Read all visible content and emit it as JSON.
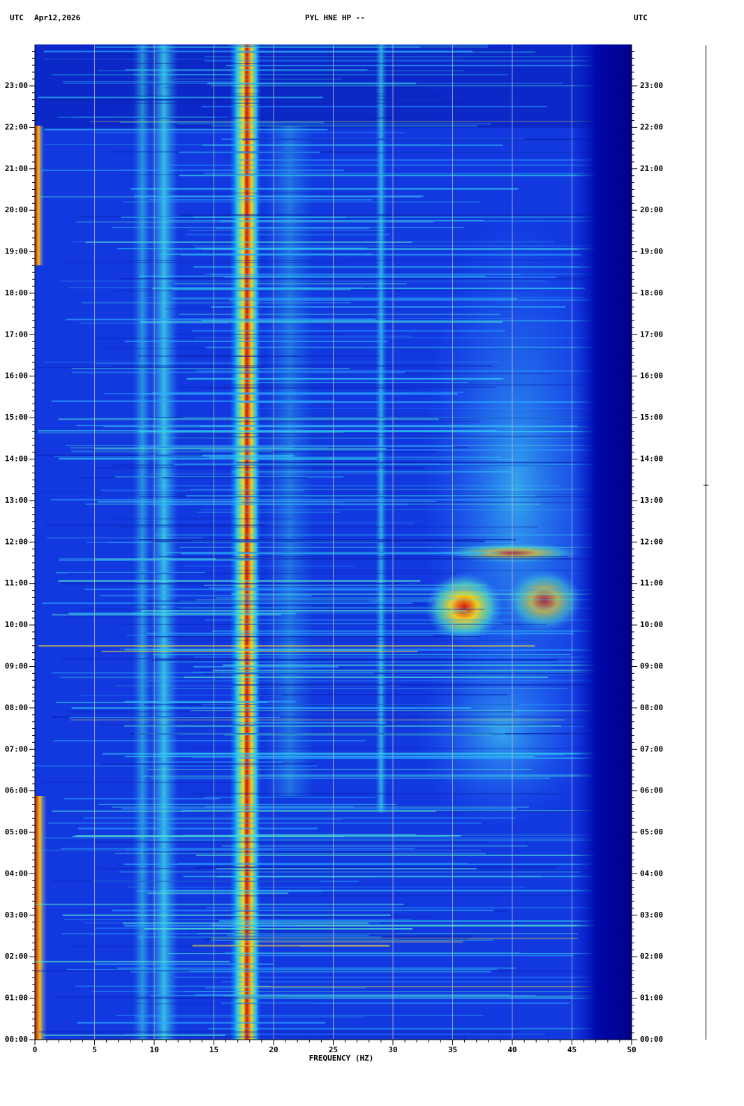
{
  "chart_data": {
    "type": "spectrogram",
    "title": "PYL HNE HP --",
    "left_header": "UTC",
    "date": "Apr12,2026",
    "right_header": "UTC",
    "x_label": "FREQUENCY (HZ)",
    "xlim": [
      0,
      50
    ],
    "xticks": [
      0,
      5,
      10,
      15,
      20,
      25,
      30,
      35,
      40,
      45,
      50
    ],
    "ylim": [
      0,
      24
    ],
    "yticks": [
      {
        "value": 0,
        "label": "00:00"
      },
      {
        "value": 1,
        "label": "01:00"
      },
      {
        "value": 2,
        "label": "02:00"
      },
      {
        "value": 3,
        "label": "03:00"
      },
      {
        "value": 4,
        "label": "04:00"
      },
      {
        "value": 5,
        "label": "05:00"
      },
      {
        "value": 6,
        "label": "06:00"
      },
      {
        "value": 7,
        "label": "07:00"
      },
      {
        "value": 8,
        "label": "08:00"
      },
      {
        "value": 9,
        "label": "09:00"
      },
      {
        "value": 10,
        "label": "10:00"
      },
      {
        "value": 11,
        "label": "11:00"
      },
      {
        "value": 12,
        "label": "12:00"
      },
      {
        "value": 13,
        "label": "13:00"
      },
      {
        "value": 14,
        "label": "14:00"
      },
      {
        "value": 15,
        "label": "15:00"
      },
      {
        "value": 16,
        "label": "16:00"
      },
      {
        "value": 17,
        "label": "17:00"
      },
      {
        "value": 18,
        "label": "18:00"
      },
      {
        "value": 19,
        "label": "19:00"
      },
      {
        "value": 20,
        "label": "20:00"
      },
      {
        "value": 21,
        "label": "21:00"
      },
      {
        "value": 22,
        "label": "22:00"
      },
      {
        "value": 23,
        "label": "23:00"
      }
    ],
    "grid": true
  }
}
